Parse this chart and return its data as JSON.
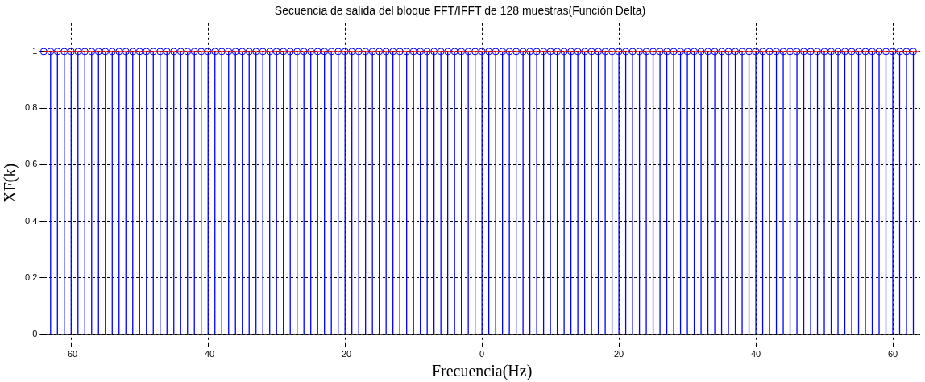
{
  "chart_data": {
    "type": "lollipop",
    "title": "Secuencia de salida del bloque FFT/IFFT de 128 muestras(Función Delta)",
    "xlabel": "Frecuencia(Hz)",
    "ylabel": "XF(k)",
    "x": [
      -64,
      -63,
      -62,
      -61,
      -60,
      -59,
      -58,
      -57,
      -56,
      -55,
      -54,
      -53,
      -52,
      -51,
      -50,
      -49,
      -48,
      -47,
      -46,
      -45,
      -44,
      -43,
      -42,
      -41,
      -40,
      -39,
      -38,
      -37,
      -36,
      -35,
      -34,
      -33,
      -32,
      -31,
      -30,
      -29,
      -28,
      -27,
      -26,
      -25,
      -24,
      -23,
      -22,
      -21,
      -20,
      -19,
      -18,
      -17,
      -16,
      -15,
      -14,
      -13,
      -12,
      -11,
      -10,
      -9,
      -8,
      -7,
      -6,
      -5,
      -4,
      -3,
      -2,
      -1,
      0,
      1,
      2,
      3,
      4,
      5,
      6,
      7,
      8,
      9,
      10,
      11,
      12,
      13,
      14,
      15,
      16,
      17,
      18,
      19,
      20,
      21,
      22,
      23,
      24,
      25,
      26,
      27,
      28,
      29,
      30,
      31,
      32,
      33,
      34,
      35,
      36,
      37,
      38,
      39,
      40,
      41,
      42,
      43,
      44,
      45,
      46,
      47,
      48,
      49,
      50,
      51,
      52,
      53,
      54,
      55,
      56,
      57,
      58,
      59,
      60,
      61,
      62,
      63
    ],
    "series": [
      {
        "color": "#0000ff",
        "values": [
          1,
          1,
          1,
          1,
          1,
          1,
          1,
          1,
          1,
          1,
          1,
          1,
          1,
          1,
          1,
          1,
          1,
          1,
          1,
          1,
          1,
          1,
          1,
          1,
          1,
          1,
          1,
          1,
          1,
          1,
          1,
          1,
          1,
          1,
          1,
          1,
          1,
          1,
          1,
          1,
          1,
          1,
          1,
          1,
          1,
          1,
          1,
          1,
          1,
          1,
          1,
          1,
          1,
          1,
          1,
          1,
          1,
          1,
          1,
          1,
          1,
          1,
          1,
          1,
          1,
          1,
          1,
          1,
          1,
          1,
          1,
          1,
          1,
          1,
          1,
          1,
          1,
          1,
          1,
          1,
          1,
          1,
          1,
          1,
          1,
          1,
          1,
          1,
          1,
          1,
          1,
          1,
          1,
          1,
          1,
          1,
          1,
          1,
          1,
          1,
          1,
          1,
          1,
          1,
          1,
          1,
          1,
          1,
          1,
          1,
          1,
          1,
          1,
          1,
          1,
          1,
          1,
          1,
          1,
          1,
          1,
          1,
          1,
          1,
          1,
          1,
          1,
          1
        ]
      }
    ],
    "ref_lines": [
      {
        "axis": "y",
        "value": 1,
        "color": "#ff0000"
      }
    ],
    "xlim": [
      -64,
      64
    ],
    "ylim": [
      -0.03,
      1.1
    ],
    "xticks": [
      -60,
      -40,
      -20,
      0,
      20,
      40,
      60
    ],
    "yticks": [
      0,
      0.2,
      0.4,
      0.6,
      0.8,
      1
    ],
    "grid": true,
    "marker": "circle",
    "line_style": "solid"
  }
}
